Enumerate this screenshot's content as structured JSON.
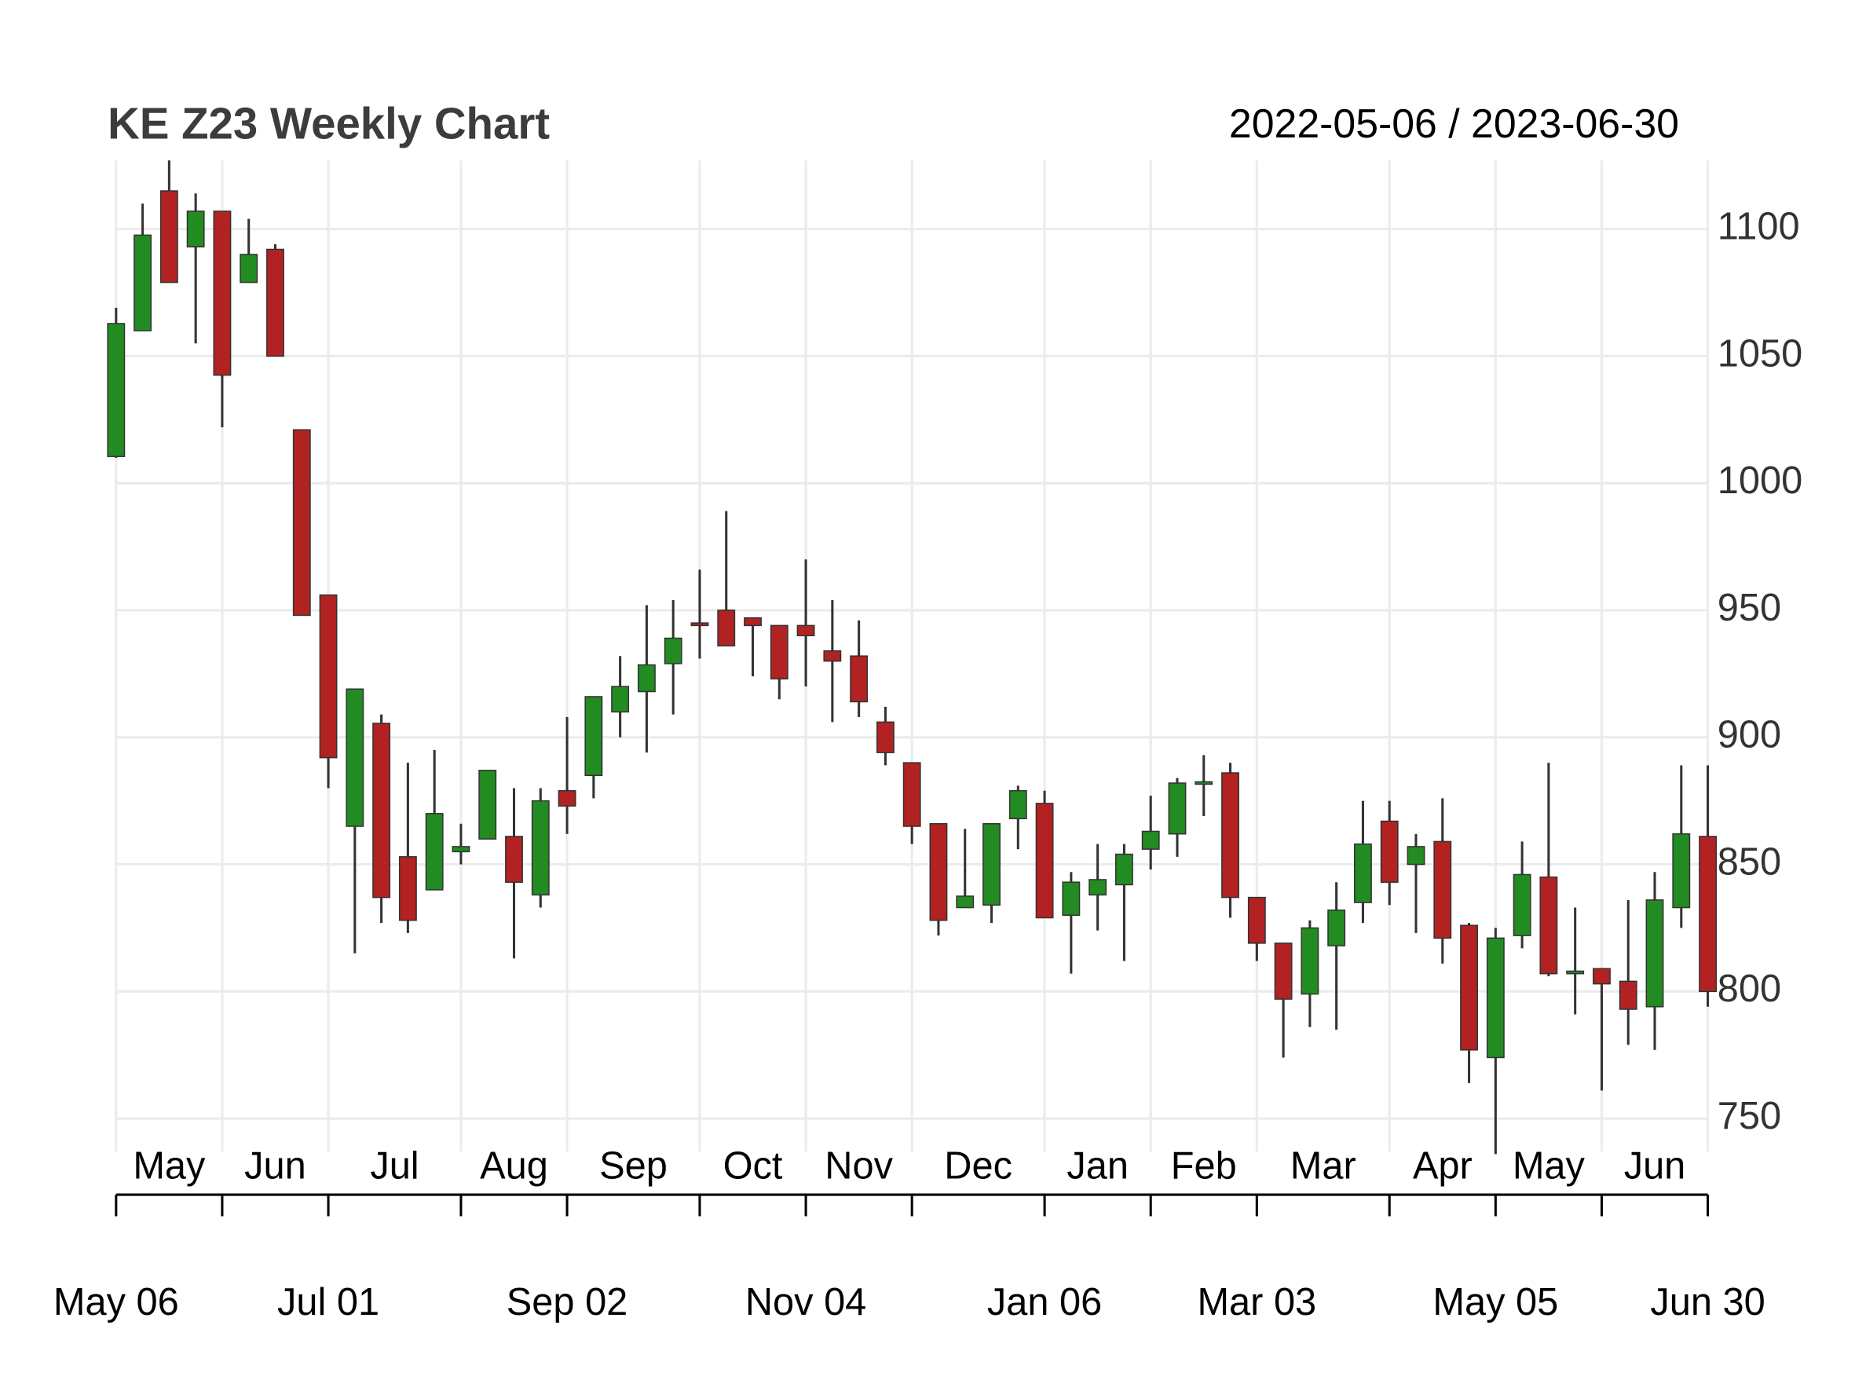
{
  "chart_data": {
    "type": "candlestick",
    "title": "KE Z23 Weekly Chart",
    "subtitle": "2022-05-06 / 2023-06-30",
    "open": [
      1010.5,
      1060,
      1115,
      1093,
      1107,
      1079,
      1092,
      1021,
      956,
      865,
      905.5,
      853,
      840,
      855,
      860,
      861,
      838,
      879,
      885,
      910,
      918,
      929,
      945,
      950,
      947,
      944,
      944,
      934,
      932,
      906,
      890,
      866,
      833,
      834,
      868,
      874,
      830,
      838,
      842,
      856,
      862,
      882,
      886,
      837,
      819,
      799,
      818,
      835,
      867,
      850,
      859,
      826,
      774,
      822,
      845,
      807,
      809,
      804,
      794,
      833,
      861
    ],
    "high": [
      1069,
      1110,
      1127,
      1114,
      1107,
      1104,
      1094,
      1021,
      956,
      919,
      909,
      890,
      895,
      866,
      887,
      880,
      880,
      908,
      916,
      932,
      952,
      954,
      966,
      989,
      947,
      944,
      970,
      954,
      946,
      912,
      890,
      866,
      864,
      866,
      881,
      879,
      847,
      858,
      858,
      877,
      884,
      893,
      890,
      837,
      819,
      828,
      843,
      875,
      875,
      862,
      876,
      827,
      825,
      859,
      890,
      833,
      809,
      836,
      847,
      889,
      889
    ],
    "low": [
      1010,
      1060,
      1079,
      1055,
      1022,
      1079,
      1050,
      948,
      880,
      815,
      827,
      823,
      840,
      850,
      860,
      813,
      833,
      862,
      876,
      900,
      894,
      909,
      931,
      936,
      924,
      915,
      920,
      906,
      908,
      889,
      858,
      822,
      833,
      827,
      856,
      829,
      807,
      824,
      812,
      848,
      853,
      869,
      829,
      812,
      774,
      786,
      785,
      827,
      834,
      823,
      811,
      764,
      736,
      817,
      806,
      791,
      761,
      779,
      777,
      825,
      794
    ],
    "close": [
      1062.8,
      1097.6,
      1079,
      1107,
      1042.5,
      1090,
      1050,
      948,
      892,
      919,
      837,
      828,
      870,
      857,
      887,
      843,
      875,
      873,
      916,
      920,
      928.5,
      939,
      944,
      936,
      944,
      923,
      940,
      930,
      914,
      894,
      865,
      828,
      837.5,
      866,
      879,
      829,
      843,
      844,
      854,
      863,
      882,
      882.5,
      837,
      819,
      797,
      825,
      832,
      858,
      843,
      857,
      821,
      777,
      821,
      846,
      807,
      808,
      803,
      793,
      836,
      862,
      800
    ],
    "up_color": "#228b22",
    "down_color": "#b22222",
    "ylim": [
      737,
      1127
    ],
    "yticks": [
      750,
      800,
      850,
      900,
      950,
      1000,
      1050,
      1100
    ],
    "xticks": [
      {
        "value": 0,
        "label": "May 06"
      },
      {
        "value": 8,
        "label": "Jul 01"
      },
      {
        "value": 17,
        "label": "Sep 02"
      },
      {
        "value": 26,
        "label": "Nov 04"
      },
      {
        "value": 35,
        "label": "Jan 06"
      },
      {
        "value": 43,
        "label": "Mar 03"
      },
      {
        "value": 52,
        "label": "May 05"
      },
      {
        "value": 60,
        "label": "Jun 30"
      }
    ],
    "xminorticks": [
      4,
      13,
      22,
      30,
      39,
      48,
      56
    ],
    "month_labels": [
      "May",
      "Jun",
      "Jul",
      "Aug",
      "Sep",
      "Oct",
      "Nov",
      "Dec",
      "Jan",
      "Feb",
      "Mar",
      "Apr",
      "May",
      "Jun"
    ],
    "grid": true
  }
}
